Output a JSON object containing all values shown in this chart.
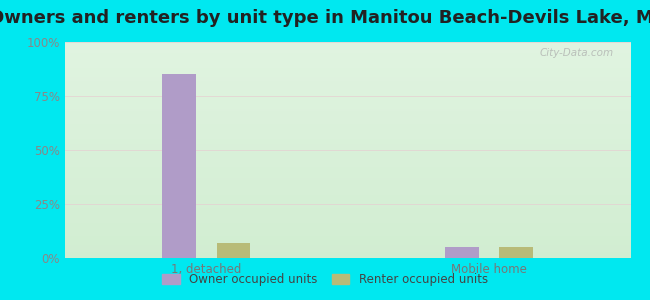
{
  "title": "Owners and renters by unit type in Manitou Beach-Devils Lake, MI",
  "categories": [
    "1, detached",
    "Mobile home"
  ],
  "owner_values": [
    85,
    5
  ],
  "renter_values": [
    7,
    5
  ],
  "owner_color": "#b09cc8",
  "renter_color": "#b8bb78",
  "yticks": [
    0,
    25,
    50,
    75,
    100
  ],
  "ytick_labels": [
    "0%",
    "25%",
    "50%",
    "75%",
    "100%"
  ],
  "title_fontsize": 13,
  "legend_labels": [
    "Owner occupied units",
    "Renter occupied units"
  ],
  "watermark": "City-Data.com",
  "outer_bg": "#00e8f0",
  "bar_width": 0.06,
  "group_centers": [
    0.25,
    0.75
  ],
  "xlim": [
    0.0,
    1.0
  ],
  "ylim": [
    0,
    100
  ]
}
